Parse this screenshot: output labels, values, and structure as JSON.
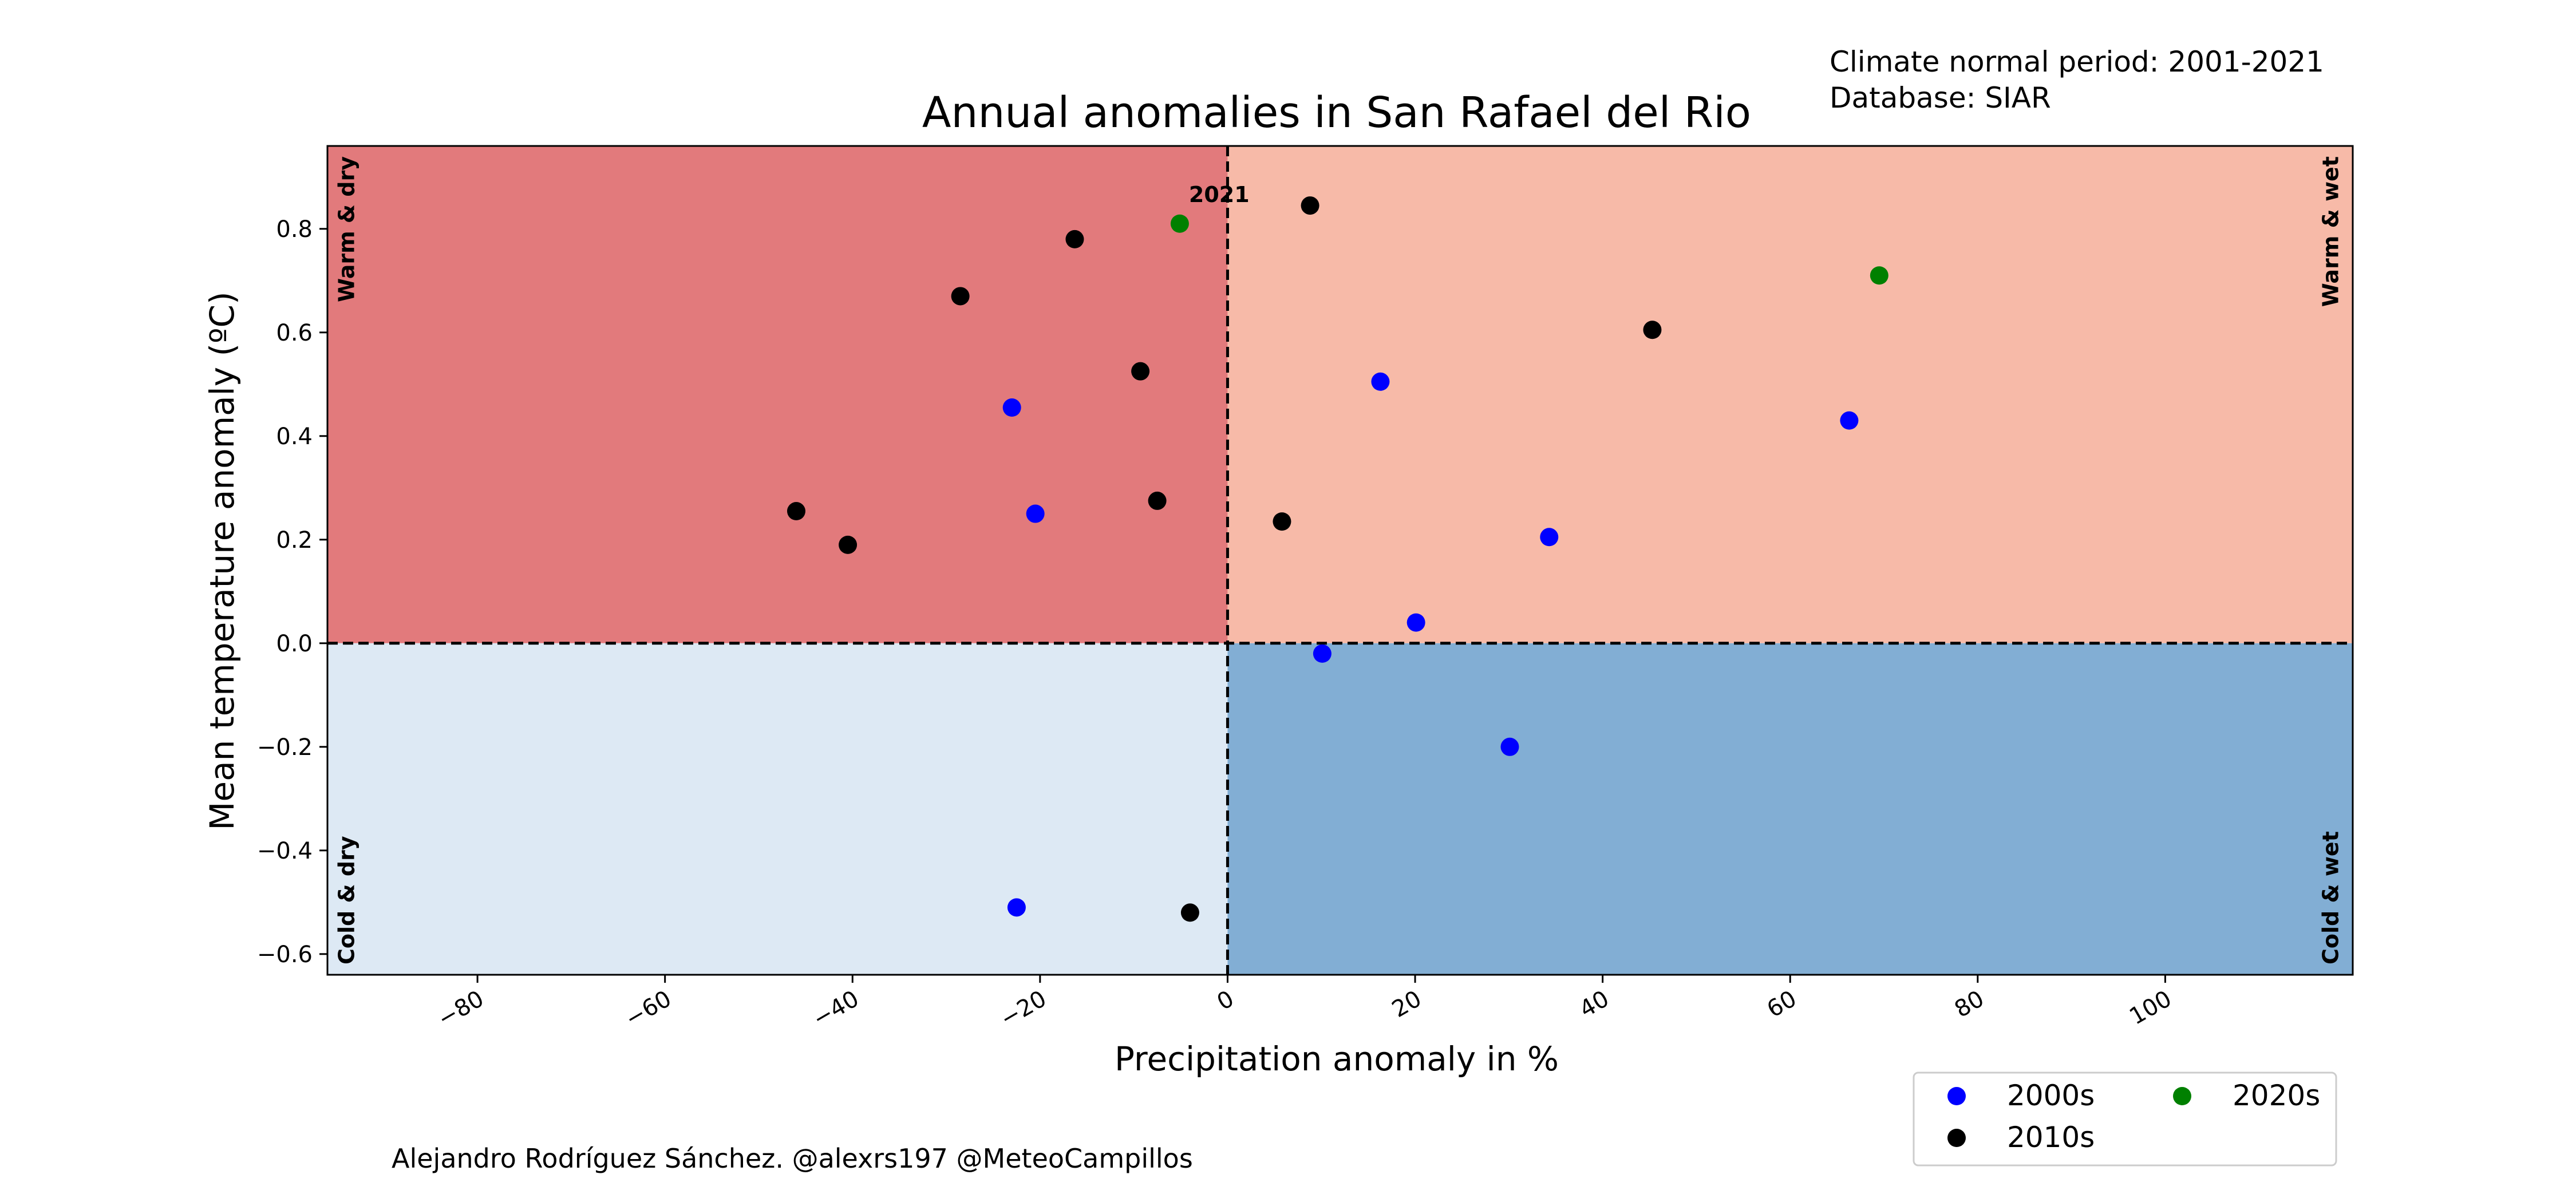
{
  "note": {
    "line1": "Climate normal period: 2001-2021",
    "line2": "Database: SIAR"
  },
  "credit": "Alejandro Rodríguez Sánchez. @alexrs197 @MeteoCampillos",
  "colors": {
    "warm_dry": "#e27a7c",
    "warm_wet": "#f7baa8",
    "cold_dry": "#dde9f4",
    "cold_wet": "#82aed4",
    "c2000s": "#0000ff",
    "c2010s": "#000000",
    "c2020s": "#008000"
  },
  "chart_data": {
    "type": "scatter",
    "title": "Annual anomalies in San Rafael  del  Rio",
    "xlabel": "Precipitation anomaly in %",
    "ylabel": "Mean temperature anomaly (ºC)",
    "xlim": [
      -96,
      120
    ],
    "ylim": [
      -0.64,
      0.96
    ],
    "xticks": [
      -80,
      -60,
      -40,
      -20,
      0,
      20,
      40,
      60,
      80,
      100
    ],
    "xtick_labels": [
      "−80",
      "−60",
      "−40",
      "−20",
      "0",
      "20",
      "40",
      "60",
      "80",
      "100"
    ],
    "yticks": [
      -0.6,
      -0.4,
      -0.2,
      0.0,
      0.2,
      0.4,
      0.6,
      0.8
    ],
    "ytick_labels": [
      "−0.6",
      "−0.4",
      "−0.2",
      "0.0",
      "0.2",
      "0.4",
      "0.6",
      "0.8"
    ],
    "grid": false,
    "reference_lines": {
      "x": 0,
      "y": 0,
      "style": "dashed"
    },
    "quadrant_labels": {
      "warm_dry": "Warm & dry",
      "warm_wet": "Warm & wet",
      "cold_dry": "Cold & dry",
      "cold_wet": "Cold & wet"
    },
    "legend": {
      "placement": "below-right",
      "ncol": 2,
      "entries": [
        "2000s",
        "2010s",
        "2020s"
      ]
    },
    "series": [
      {
        "name": "2000s",
        "color": "#0000ff",
        "points": [
          {
            "x": -23,
            "y": 0.455
          },
          {
            "x": -20.5,
            "y": 0.25
          },
          {
            "x": -22.5,
            "y": -0.51
          },
          {
            "x": 16.3,
            "y": 0.505
          },
          {
            "x": 66.3,
            "y": 0.43
          },
          {
            "x": 34.3,
            "y": 0.205
          },
          {
            "x": 20.1,
            "y": 0.04
          },
          {
            "x": 10.1,
            "y": -0.02
          },
          {
            "x": 30.1,
            "y": -0.2
          }
        ]
      },
      {
        "name": "2010s",
        "color": "#000000",
        "points": [
          {
            "x": -46,
            "y": 0.255
          },
          {
            "x": -40.5,
            "y": 0.19
          },
          {
            "x": -28.5,
            "y": 0.67
          },
          {
            "x": -16.3,
            "y": 0.78
          },
          {
            "x": -9.3,
            "y": 0.525
          },
          {
            "x": -7.5,
            "y": 0.275
          },
          {
            "x": -4,
            "y": -0.52
          },
          {
            "x": 5.8,
            "y": 0.235
          },
          {
            "x": 8.8,
            "y": 0.845
          },
          {
            "x": 45.3,
            "y": 0.605
          }
        ]
      },
      {
        "name": "2020s",
        "color": "#008000",
        "points": [
          {
            "x": -5.1,
            "y": 0.81,
            "label": "2021"
          },
          {
            "x": 69.5,
            "y": 0.71
          }
        ]
      }
    ]
  }
}
